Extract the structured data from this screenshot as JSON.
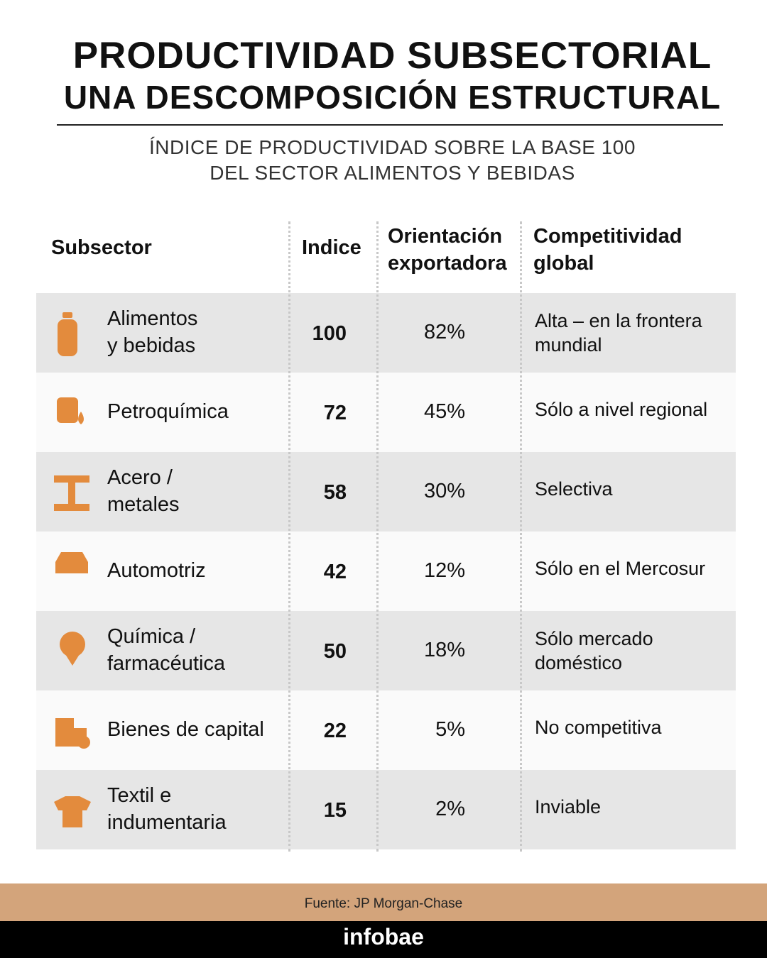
{
  "header": {
    "title": [
      "PRODUCTIVIDAD SUBSECTORIAL",
      "UNA DESCOMPOSICIÓN ESTRUCTURAL"
    ],
    "subtitle": [
      "ÍNDICE DE PRODUCTIVIDAD SOBRE LA BASE 100",
      "DEL SECTOR ALIMENTOS Y BEBIDAS"
    ]
  },
  "table": {
    "columns": [
      "Subsector",
      "Indice",
      "Orientación\nexportadora",
      "Competitividad\nglobal"
    ],
    "rows": [
      [
        "Alimentos\ny bebidas",
        100,
        "82%",
        "Alta – en la frontera\nmundial"
      ],
      [
        "Petroquímica",
        72,
        "45%",
        "Sólo a nivel regional"
      ],
      [
        "Acero /\nmetales",
        58,
        "30%",
        "Selectiva"
      ],
      [
        "Automotriz",
        42,
        "12%",
        "Sólo en el Mercosur"
      ],
      [
        "Química /\nfarmacéutica",
        50,
        "18%",
        "Sólo mercado\ndoméstico"
      ],
      [
        "Bienes de capital",
        22,
        "5%",
        "No competitiva"
      ],
      [
        "Textil e\nindumentaria",
        15,
        "2%",
        "Inviable"
      ]
    ]
  },
  "footer": {
    "source": "Fuente: JP Morgan-Chase",
    "brand": "infobae"
  }
}
